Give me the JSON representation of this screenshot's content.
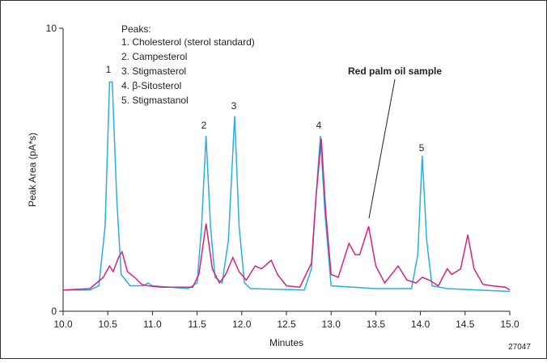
{
  "chart_data": {
    "type": "line",
    "y_label": "Peak Area (pA*s)",
    "x_label": "Minutes",
    "xlim": [
      10,
      15
    ],
    "ylim": [
      0,
      10
    ],
    "xticks": [
      {
        "value": 10,
        "label": "10.0"
      },
      {
        "value": 10.5,
        "label": "10.5"
      },
      {
        "value": 11,
        "label": "11.0"
      },
      {
        "value": 11.5,
        "label": "11.5"
      },
      {
        "value": 12,
        "label": "12.0"
      },
      {
        "value": 12.5,
        "label": "12.5"
      },
      {
        "value": 13,
        "label": "13.0"
      },
      {
        "value": 13.5,
        "label": "13.5"
      },
      {
        "value": 14,
        "label": "14.0"
      },
      {
        "value": 14.5,
        "label": "14.5"
      },
      {
        "value": 15,
        "label": "15.0"
      }
    ],
    "yticks": [
      0,
      10
    ],
    "series": [
      {
        "color": "#29aee0",
        "x": [
          10.0,
          10.3,
          10.4,
          10.47,
          10.52,
          10.55,
          10.6,
          10.65,
          10.75,
          10.9,
          10.95,
          11.0,
          11.4,
          11.5,
          11.55,
          11.6,
          11.65,
          11.7,
          11.78,
          11.85,
          11.92,
          11.97,
          12.03,
          12.1,
          12.7,
          12.78,
          12.83,
          12.88,
          12.93,
          13.0,
          13.5,
          13.9,
          13.97,
          14.02,
          14.07,
          14.13,
          14.3,
          15.0
        ],
        "values": [
          0.75,
          0.75,
          0.9,
          3,
          8.1,
          8.1,
          4,
          1.3,
          0.9,
          0.9,
          1.0,
          0.9,
          0.8,
          1.0,
          3,
          6.2,
          3,
          1.2,
          1.0,
          2.5,
          6.9,
          3,
          1.0,
          0.8,
          0.75,
          1.5,
          4,
          6.2,
          3.5,
          0.9,
          0.8,
          0.8,
          2,
          5.5,
          2.5,
          0.9,
          0.8,
          0.7
        ]
      },
      {
        "color": "#d4237f",
        "x": [
          10.0,
          10.3,
          10.45,
          10.52,
          10.56,
          10.62,
          10.66,
          10.72,
          10.8,
          10.88,
          10.95,
          11.1,
          11.45,
          11.52,
          11.6,
          11.67,
          11.75,
          11.82,
          11.9,
          11.97,
          12.05,
          12.15,
          12.22,
          12.33,
          12.4,
          12.5,
          12.65,
          12.78,
          12.83,
          12.89,
          12.94,
          13.0,
          13.08,
          13.2,
          13.27,
          13.32,
          13.42,
          13.5,
          13.6,
          13.75,
          13.85,
          13.95,
          14.02,
          14.1,
          14.2,
          14.3,
          14.35,
          14.45,
          14.53,
          14.6,
          14.7,
          14.8,
          14.95,
          15.0
        ],
        "values": [
          0.75,
          0.8,
          1.2,
          1.6,
          1.4,
          1.9,
          2.1,
          1.4,
          1.2,
          0.95,
          0.9,
          0.85,
          0.85,
          1.3,
          3.1,
          1.5,
          1.0,
          1.3,
          1.9,
          1.4,
          1.1,
          1.6,
          1.5,
          1.8,
          1.3,
          0.9,
          0.85,
          1.7,
          4,
          6.1,
          3.5,
          1.3,
          1.2,
          2.4,
          2.0,
          2.0,
          3.0,
          1.6,
          1.0,
          1.6,
          1.1,
          1.0,
          1.2,
          1.1,
          0.9,
          1.5,
          1.3,
          1.5,
          2.7,
          1.5,
          0.95,
          0.9,
          0.85,
          0.75
        ]
      }
    ],
    "peak_labels": [
      "1",
      "2",
      "3",
      "4",
      "5"
    ],
    "legend_title": "Peaks:",
    "legend_items": [
      "1. Cholesterol (sterol standard)",
      "2. Campesterol",
      "3. Stigmasterol",
      "4. β-Sitosterol",
      "5. Stigmastanol"
    ],
    "annotation": "Red palm oil sample",
    "figure_id": "27047"
  }
}
